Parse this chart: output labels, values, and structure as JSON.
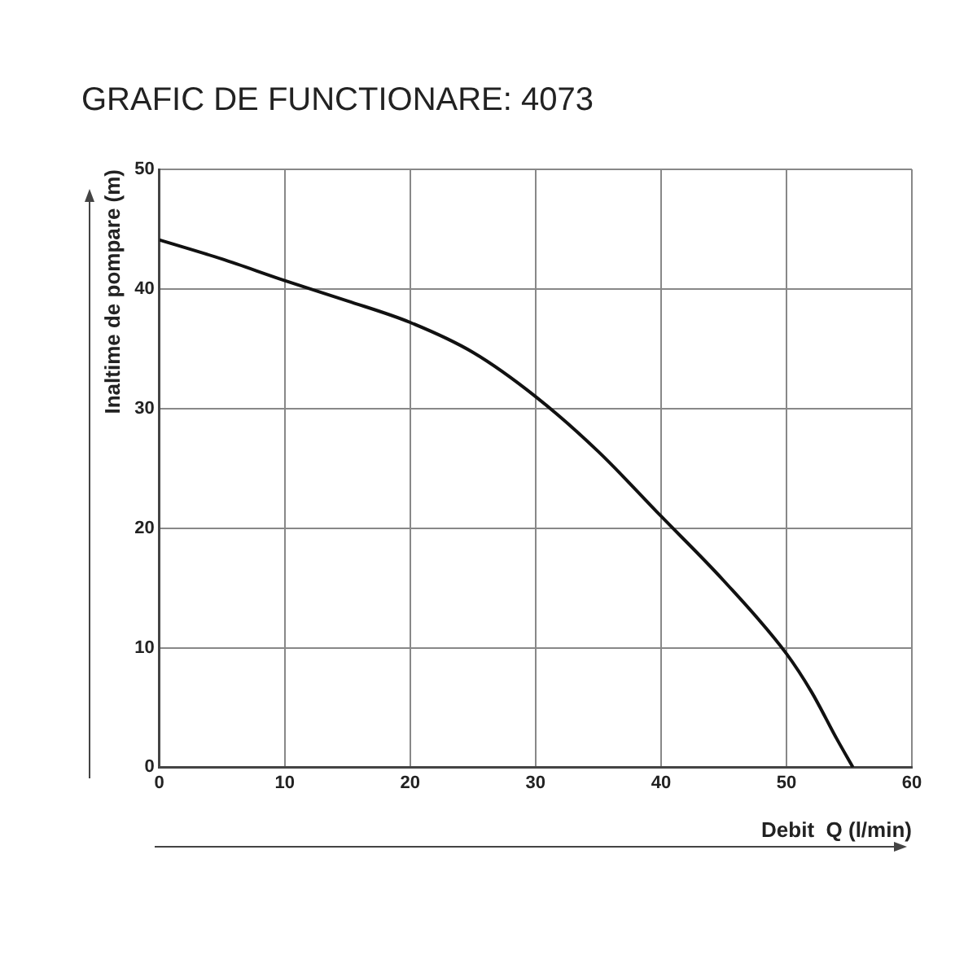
{
  "chart_data": {
    "type": "line",
    "title": "GRAFIC DE FUNCTIONARE: 4073",
    "xlabel": "Debit  Q (l/min)",
    "ylabel": "Inaltime de pompare (m)",
    "x": [
      0,
      5,
      10,
      15,
      20,
      25,
      30,
      35,
      40,
      45,
      50,
      52,
      54,
      55.3
    ],
    "series": [
      {
        "color": "#111111",
        "values": [
          44.1,
          42.5,
          40.7,
          39.0,
          37.2,
          34.7,
          31.0,
          26.4,
          21.0,
          15.6,
          9.5,
          6.3,
          2.4,
          0
        ]
      }
    ],
    "xlim": [
      0,
      60
    ],
    "xticks": [
      0,
      10,
      20,
      30,
      40,
      50,
      60
    ],
    "ylim": [
      0,
      50
    ],
    "yticks": [
      0,
      10,
      20,
      30,
      40,
      50
    ],
    "grid": true,
    "legend": false,
    "marker": "none",
    "line_style": "solid"
  }
}
